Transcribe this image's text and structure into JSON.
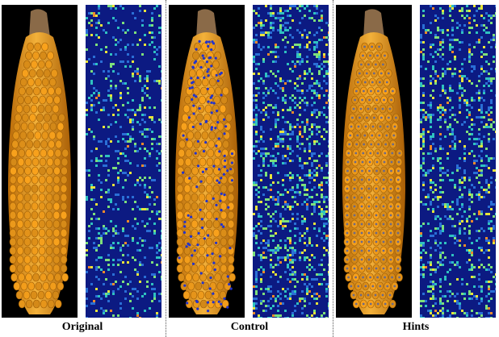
{
  "figure": {
    "groups": [
      {
        "key": "original",
        "caption": "Original",
        "hint_dots": "none",
        "colors": {
          "dot": ""
        }
      },
      {
        "key": "control",
        "caption": "Control",
        "hint_dots": "random",
        "colors": {
          "dot": "#2233cc"
        }
      },
      {
        "key": "hints",
        "caption": "Hints",
        "hint_dots": "per-kernel",
        "colors": {
          "dot": "#6a6a8a"
        }
      }
    ],
    "heatmap_colormap": [
      "#0c1a82",
      "#2a6fd6",
      "#2fc2c0",
      "#7ee07a",
      "#e9e43a",
      "#f08a2a"
    ]
  }
}
